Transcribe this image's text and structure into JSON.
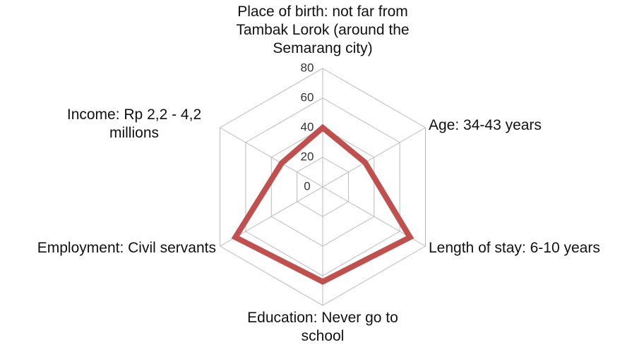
{
  "chart_data": {
    "type": "radar",
    "categories": [
      "Place of birth: not far from Tambak Lorok (around the Semarang city)",
      "Age: 34-43 years",
      "Length of stay: 6-10 years",
      "Education: Never go to school",
      "Employment: Civil servants",
      "Income: Rp 2,2 - 4,2 millions"
    ],
    "values": [
      40,
      33,
      68,
      64,
      68,
      32
    ],
    "color": "#c0504d",
    "ylim": [
      0,
      80
    ],
    "yticks": [
      0,
      20,
      40,
      60,
      80
    ],
    "grid": true
  }
}
